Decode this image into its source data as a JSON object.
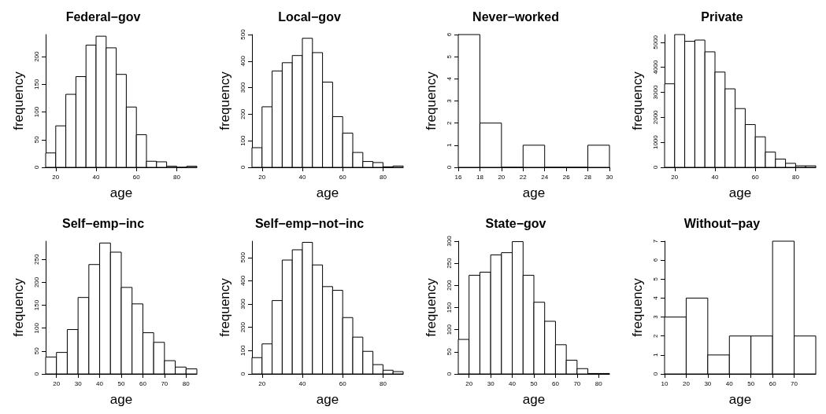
{
  "chart_data": [
    {
      "type": "histogram",
      "title": "Federal−gov",
      "xlabel": "age",
      "ylabel": "frequency",
      "color": "#ffffff",
      "bins": [
        15,
        20,
        25,
        30,
        35,
        40,
        45,
        50,
        55,
        60,
        65,
        70,
        75,
        80,
        85,
        90
      ],
      "values": [
        26,
        75,
        132,
        164,
        221,
        237,
        216,
        168,
        109,
        59,
        11,
        10,
        2,
        0,
        2
      ],
      "xlim": [
        15,
        90
      ],
      "xticks": [
        20,
        40,
        60,
        80
      ],
      "ylim": [
        0,
        240
      ],
      "yticks": [
        0,
        50,
        100,
        150,
        200
      ]
    },
    {
      "type": "histogram",
      "title": "Local−gov",
      "xlabel": "age",
      "ylabel": "frequency",
      "color": "#ffffff",
      "bins": [
        15,
        20,
        25,
        30,
        35,
        40,
        45,
        50,
        55,
        60,
        65,
        70,
        75,
        80,
        85,
        90
      ],
      "values": [
        74,
        228,
        363,
        394,
        421,
        486,
        432,
        321,
        191,
        129,
        56,
        22,
        18,
        2,
        5
      ],
      "xlim": [
        15,
        90
      ],
      "xticks": [
        20,
        40,
        60,
        80
      ],
      "ylim": [
        0,
        500
      ],
      "yticks": [
        0,
        100,
        200,
        300,
        400,
        500
      ]
    },
    {
      "type": "histogram",
      "title": "Never−worked",
      "xlabel": "age",
      "ylabel": "frequency",
      "color": "#ffffff",
      "bins": [
        16,
        18,
        20,
        22,
        24,
        26,
        28,
        30
      ],
      "values": [
        6,
        2,
        0,
        1,
        0,
        0,
        1
      ],
      "xlim": [
        16,
        30
      ],
      "xticks": [
        16,
        18,
        20,
        22,
        24,
        26,
        28,
        30
      ],
      "ylim": [
        0,
        6
      ],
      "yticks": [
        0,
        1,
        2,
        3,
        4,
        5,
        6
      ]
    },
    {
      "type": "histogram",
      "title": "Private",
      "xlabel": "age",
      "ylabel": "frequency",
      "color": "#ffffff",
      "bins": [
        15,
        20,
        25,
        30,
        35,
        40,
        45,
        50,
        55,
        60,
        65,
        70,
        75,
        80,
        85,
        90
      ],
      "values": [
        3340,
        5310,
        5040,
        5090,
        4620,
        3810,
        3140,
        2350,
        1710,
        1220,
        610,
        330,
        160,
        60,
        60
      ],
      "xlim": [
        15,
        90
      ],
      "xticks": [
        20,
        40,
        60,
        80
      ],
      "ylim": [
        0,
        5310
      ],
      "yticks": [
        0,
        1000,
        2000,
        3000,
        4000,
        5000
      ]
    },
    {
      "type": "histogram",
      "title": "Self−emp−inc",
      "xlabel": "age",
      "ylabel": "frequency",
      "color": "#ffffff",
      "bins": [
        15,
        20,
        25,
        30,
        35,
        40,
        45,
        50,
        55,
        60,
        65,
        70,
        75,
        80,
        85
      ],
      "values": [
        37,
        47,
        97,
        167,
        239,
        286,
        266,
        189,
        153,
        90,
        69,
        29,
        15,
        11
      ],
      "xlim": [
        15,
        85
      ],
      "xticks": [
        20,
        30,
        40,
        50,
        60,
        70,
        80
      ],
      "ylim": [
        0,
        290
      ],
      "yticks": [
        0,
        50,
        100,
        150,
        200,
        250
      ]
    },
    {
      "type": "histogram",
      "title": "Self−emp−not−inc",
      "xlabel": "age",
      "ylabel": "frequency",
      "color": "#ffffff",
      "bins": [
        15,
        20,
        25,
        30,
        35,
        40,
        45,
        50,
        55,
        60,
        65,
        70,
        75,
        80,
        85,
        90
      ],
      "values": [
        70,
        129,
        315,
        489,
        533,
        565,
        468,
        375,
        359,
        242,
        158,
        97,
        40,
        16,
        10
      ],
      "xlim": [
        15,
        90
      ],
      "xticks": [
        20,
        40,
        60,
        80
      ],
      "ylim": [
        0,
        570
      ],
      "yticks": [
        0,
        100,
        200,
        300,
        400,
        500
      ]
    },
    {
      "type": "histogram",
      "title": "State−gov",
      "xlabel": "age",
      "ylabel": "frequency",
      "color": "#ffffff",
      "bins": [
        15,
        20,
        25,
        30,
        35,
        40,
        45,
        50,
        55,
        60,
        65,
        70,
        75,
        80,
        85
      ],
      "values": [
        78,
        223,
        230,
        269,
        274,
        299,
        223,
        162,
        119,
        66,
        31,
        12,
        1,
        1
      ],
      "xlim": [
        15,
        85
      ],
      "xticks": [
        20,
        30,
        40,
        50,
        60,
        70,
        80
      ],
      "ylim": [
        0,
        300
      ],
      "yticks": [
        0,
        50,
        100,
        150,
        200,
        250,
        300
      ]
    },
    {
      "type": "histogram",
      "title": "Without−pay",
      "xlabel": "age",
      "ylabel": "frequency",
      "color": "#ffffff",
      "bins": [
        10,
        20,
        30,
        40,
        50,
        60,
        70,
        80
      ],
      "values": [
        3,
        4,
        1,
        2,
        2,
        7,
        2
      ],
      "xlim": [
        10,
        80
      ],
      "xticks": [
        10,
        20,
        30,
        40,
        50,
        60,
        70
      ],
      "ylim": [
        0,
        7
      ],
      "yticks": [
        0,
        1,
        2,
        3,
        4,
        5,
        6,
        7
      ]
    }
  ]
}
